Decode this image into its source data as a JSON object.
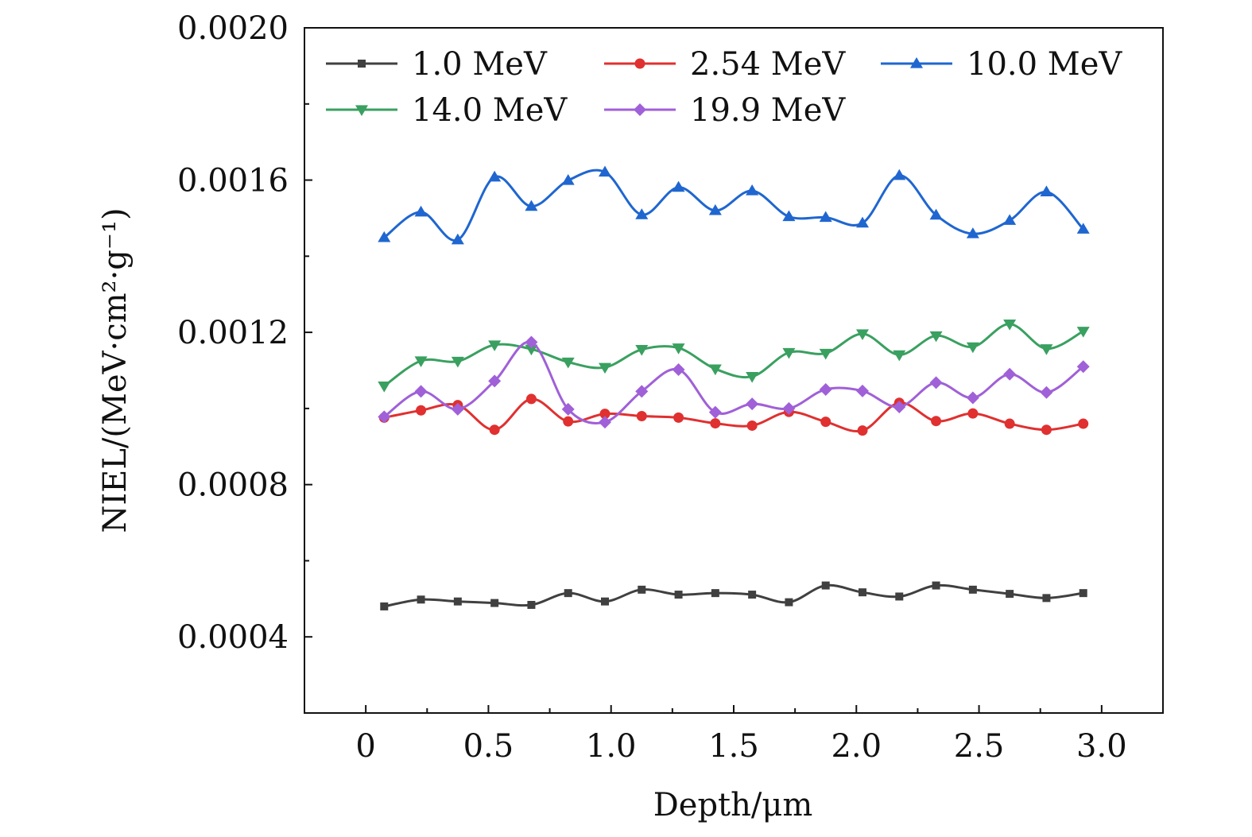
{
  "chart_data": {
    "type": "line",
    "xlabel": "Depth/μm",
    "ylabel": "NIEL/(MeV·cm²·g⁻¹)",
    "xlim": [
      -0.25,
      3.25
    ],
    "ylim": [
      0.0002,
      0.002
    ],
    "x_ticks": [
      0,
      0.5,
      1.0,
      1.5,
      2.0,
      2.5,
      3.0
    ],
    "x_tick_labels": [
      "0",
      "0.5",
      "1.0",
      "1.5",
      "2.0",
      "2.5",
      "3.0"
    ],
    "y_ticks": [
      0.0004,
      0.0008,
      0.0012,
      0.0016,
      0.002
    ],
    "y_tick_labels": [
      "0.0004",
      "0.0008",
      "0.0012",
      "0.0016",
      "0.0020"
    ],
    "grid": false,
    "legend_position": "top",
    "x": [
      0.075,
      0.225,
      0.375,
      0.525,
      0.675,
      0.825,
      0.975,
      1.125,
      1.275,
      1.425,
      1.575,
      1.725,
      1.875,
      2.025,
      2.175,
      2.325,
      2.475,
      2.625,
      2.775,
      2.925
    ],
    "series": [
      {
        "name": "1.0 MeV",
        "color": "#404040",
        "marker": "square",
        "values": [
          0.00048,
          0.000498,
          0.000493,
          0.000489,
          0.000484,
          0.000515,
          0.000493,
          0.000524,
          0.000511,
          0.000515,
          0.000511,
          0.000491,
          0.000535,
          0.000517,
          0.000506,
          0.000535,
          0.000524,
          0.000513,
          0.000502,
          0.000515
        ]
      },
      {
        "name": "2.54 MeV",
        "color": "#e03030",
        "marker": "circle",
        "values": [
          0.000976,
          0.000995,
          0.001009,
          0.000944,
          0.001025,
          0.000966,
          0.000986,
          0.00098,
          0.000976,
          0.000961,
          0.000955,
          0.000991,
          0.000965,
          0.000942,
          0.001015,
          0.000967,
          0.000987,
          0.00096,
          0.000944,
          0.00096
        ]
      },
      {
        "name": "10.0 MeV",
        "color": "#1f66d0",
        "marker": "triangle-up",
        "values": [
          0.001449,
          0.001516,
          0.001443,
          0.001608,
          0.001531,
          0.001599,
          0.001621,
          0.001509,
          0.001581,
          0.00152,
          0.001572,
          0.001504,
          0.001502,
          0.001487,
          0.001612,
          0.001508,
          0.001459,
          0.001494,
          0.001569,
          0.001471
        ]
      },
      {
        "name": "14.0 MeV",
        "color": "#3aa060",
        "marker": "triangle-down",
        "values": [
          0.001059,
          0.001125,
          0.001124,
          0.001167,
          0.001156,
          0.001122,
          0.001108,
          0.001155,
          0.001159,
          0.001104,
          0.001084,
          0.001147,
          0.001145,
          0.001196,
          0.001141,
          0.001191,
          0.001162,
          0.001222,
          0.001157,
          0.001203
        ]
      },
      {
        "name": "19.9 MeV",
        "color": "#a060d8",
        "marker": "diamond",
        "values": [
          0.000978,
          0.001045,
          0.000998,
          0.001072,
          0.001174,
          0.000998,
          0.000964,
          0.001045,
          0.001102,
          0.00099,
          0.001012,
          0.001,
          0.00105,
          0.001046,
          0.001004,
          0.001068,
          0.001028,
          0.00109,
          0.001042,
          0.00111
        ]
      }
    ]
  }
}
